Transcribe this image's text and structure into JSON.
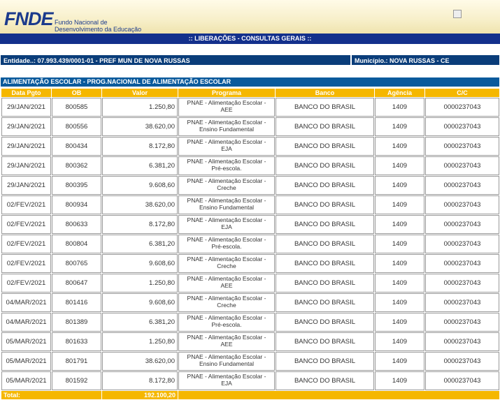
{
  "header": {
    "logo": "FNDE",
    "org_line1": "Fundo Nacional de",
    "org_line2": "Desenvolvimento da Educação",
    "nav_title": ":: LIBERAÇÕES - CONSULTAS GERAIS ::"
  },
  "entity": {
    "entidade": "Entidade..: 07.993.439/0001-01 - PREF MUN DE NOVA RUSSAS",
    "municipio": "Município.: NOVA RUSSAS - CE"
  },
  "section_title": "ALIMENTAÇÃO ESCOLAR - PROG.NACIONAL DE ALIMENTAÇÃO ESCOLAR",
  "columns": [
    "Data Pgto",
    "OB",
    "Valor",
    "Programa",
    "Banco",
    "Agência",
    "C/C"
  ],
  "rows": [
    {
      "data": "29/JAN/2021",
      "ob": "800585",
      "valor": "1.250,80",
      "prog1": "PNAE - Alimentação Escolar -",
      "prog2": "AEE",
      "banco": "BANCO DO BRASIL",
      "agencia": "1409",
      "cc": "0000237043"
    },
    {
      "data": "29/JAN/2021",
      "ob": "800556",
      "valor": "38.620,00",
      "prog1": "PNAE - Alimentação Escolar -",
      "prog2": "Ensino Fundamental",
      "banco": "BANCO DO BRASIL",
      "agencia": "1409",
      "cc": "0000237043"
    },
    {
      "data": "29/JAN/2021",
      "ob": "800434",
      "valor": "8.172,80",
      "prog1": "PNAE - Alimentação Escolar -",
      "prog2": "EJA",
      "banco": "BANCO DO BRASIL",
      "agencia": "1409",
      "cc": "0000237043"
    },
    {
      "data": "29/JAN/2021",
      "ob": "800362",
      "valor": "6.381,20",
      "prog1": "PNAE - Alimentação Escolar -",
      "prog2": "Pré-escola.",
      "banco": "BANCO DO BRASIL",
      "agencia": "1409",
      "cc": "0000237043"
    },
    {
      "data": "29/JAN/2021",
      "ob": "800395",
      "valor": "9.608,60",
      "prog1": "PNAE - Alimentação Escolar -",
      "prog2": "Creche",
      "banco": "BANCO DO BRASIL",
      "agencia": "1409",
      "cc": "0000237043"
    },
    {
      "data": "02/FEV/2021",
      "ob": "800934",
      "valor": "38.620,00",
      "prog1": "PNAE - Alimentação Escolar -",
      "prog2": "Ensino Fundamental",
      "banco": "BANCO DO BRASIL",
      "agencia": "1409",
      "cc": "0000237043"
    },
    {
      "data": "02/FEV/2021",
      "ob": "800633",
      "valor": "8.172,80",
      "prog1": "PNAE - Alimentação Escolar -",
      "prog2": "EJA",
      "banco": "BANCO DO BRASIL",
      "agencia": "1409",
      "cc": "0000237043"
    },
    {
      "data": "02/FEV/2021",
      "ob": "800804",
      "valor": "6.381,20",
      "prog1": "PNAE - Alimentação Escolar -",
      "prog2": "Pré-escola.",
      "banco": "BANCO DO BRASIL",
      "agencia": "1409",
      "cc": "0000237043"
    },
    {
      "data": "02/FEV/2021",
      "ob": "800765",
      "valor": "9.608,60",
      "prog1": "PNAE - Alimentação Escolar -",
      "prog2": "Creche",
      "banco": "BANCO DO BRASIL",
      "agencia": "1409",
      "cc": "0000237043"
    },
    {
      "data": "02/FEV/2021",
      "ob": "800647",
      "valor": "1.250,80",
      "prog1": "PNAE - Alimentação Escolar -",
      "prog2": "AEE",
      "banco": "BANCO DO BRASIL",
      "agencia": "1409",
      "cc": "0000237043"
    },
    {
      "data": "04/MAR/2021",
      "ob": "801416",
      "valor": "9.608,60",
      "prog1": "PNAE - Alimentação Escolar -",
      "prog2": "Creche",
      "banco": "BANCO DO BRASIL",
      "agencia": "1409",
      "cc": "0000237043"
    },
    {
      "data": "04/MAR/2021",
      "ob": "801389",
      "valor": "6.381,20",
      "prog1": "PNAE - Alimentação Escolar -",
      "prog2": "Pré-escola.",
      "banco": "BANCO DO BRASIL",
      "agencia": "1409",
      "cc": "0000237043"
    },
    {
      "data": "05/MAR/2021",
      "ob": "801633",
      "valor": "1.250,80",
      "prog1": "PNAE - Alimentação Escolar -",
      "prog2": "AEE",
      "banco": "BANCO DO BRASIL",
      "agencia": "1409",
      "cc": "0000237043"
    },
    {
      "data": "05/MAR/2021",
      "ob": "801791",
      "valor": "38.620,00",
      "prog1": "PNAE - Alimentação Escolar -",
      "prog2": "Ensino Fundamental",
      "banco": "BANCO DO BRASIL",
      "agencia": "1409",
      "cc": "0000237043"
    },
    {
      "data": "05/MAR/2021",
      "ob": "801592",
      "valor": "8.172,80",
      "prog1": "PNAE - Alimentação Escolar -",
      "prog2": "EJA",
      "banco": "BANCO DO BRASIL",
      "agencia": "1409",
      "cc": "0000237043"
    }
  ],
  "total": {
    "label": "Total:",
    "valor": "192.100,20"
  },
  "icons": {
    "header_image": "broken-image-icon"
  },
  "colors": {
    "nav": "#13308c",
    "section": "#0a5a9c",
    "entity": "#0a3d7a",
    "header_cells": "#f5b700"
  }
}
